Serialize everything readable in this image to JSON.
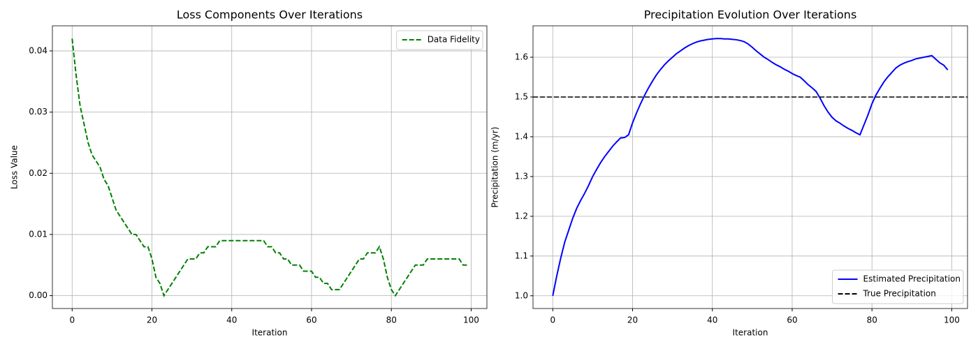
{
  "chart_data": [
    {
      "type": "line",
      "title": "Loss Components Over Iterations",
      "xlabel": "Iteration",
      "ylabel": "Loss Value",
      "x": [
        0,
        1,
        2,
        3,
        4,
        5,
        6,
        7,
        8,
        9,
        10,
        11,
        12,
        13,
        14,
        15,
        16,
        17,
        18,
        19,
        20,
        21,
        22,
        23,
        24,
        25,
        26,
        27,
        28,
        29,
        30,
        31,
        32,
        33,
        34,
        35,
        36,
        37,
        38,
        39,
        40,
        41,
        42,
        43,
        44,
        45,
        46,
        47,
        48,
        49,
        50,
        51,
        52,
        53,
        54,
        55,
        56,
        57,
        58,
        59,
        60,
        61,
        62,
        63,
        64,
        65,
        66,
        67,
        68,
        69,
        70,
        71,
        72,
        73,
        74,
        75,
        76,
        77,
        78,
        79,
        80,
        81,
        82,
        83,
        84,
        85,
        86,
        87,
        88,
        89,
        90,
        91,
        92,
        93,
        94,
        95,
        96,
        97,
        98,
        99
      ],
      "series": [
        {
          "name": "Data Fidelity",
          "color": "#008000",
          "linestyle": "dashed",
          "values": [
            0.042,
            0.036,
            0.031,
            0.028,
            0.025,
            0.023,
            0.022,
            0.021,
            0.019,
            0.018,
            0.016,
            0.014,
            0.013,
            0.012,
            0.011,
            0.01,
            0.01,
            0.009,
            0.008,
            0.008,
            0.006,
            0.003,
            0.002,
            0.0,
            0.001,
            0.002,
            0.003,
            0.004,
            0.005,
            0.006,
            0.006,
            0.006,
            0.007,
            0.007,
            0.008,
            0.008,
            0.008,
            0.009,
            0.009,
            0.009,
            0.009,
            0.009,
            0.009,
            0.009,
            0.009,
            0.009,
            0.009,
            0.009,
            0.009,
            0.008,
            0.008,
            0.007,
            0.007,
            0.006,
            0.006,
            0.005,
            0.005,
            0.005,
            0.004,
            0.004,
            0.004,
            0.003,
            0.003,
            0.002,
            0.002,
            0.001,
            0.001,
            0.001,
            0.002,
            0.003,
            0.004,
            0.005,
            0.006,
            0.006,
            0.007,
            0.007,
            0.007,
            0.008,
            0.006,
            0.003,
            0.001,
            0.0,
            0.001,
            0.002,
            0.003,
            0.004,
            0.005,
            0.005,
            0.005,
            0.006,
            0.006,
            0.006,
            0.006,
            0.006,
            0.006,
            0.006,
            0.006,
            0.006,
            0.005,
            0.005
          ]
        }
      ],
      "xlim": [
        -4.95,
        103.95
      ],
      "xticks": [
        0,
        20,
        40,
        60,
        80,
        100
      ],
      "ylim": [
        -0.0021,
        0.0441
      ],
      "yticks": [
        {
          "value": 0,
          "label": "0.00"
        },
        0.01,
        0.02,
        0.03,
        0.04
      ],
      "grid": true,
      "legend": "upper right"
    },
    {
      "type": "line",
      "title": "Precipitation Evolution Over Iterations",
      "xlabel": "Iteration",
      "ylabel": "Precipitation (m/yr)",
      "x": [
        0,
        1,
        2,
        3,
        4,
        5,
        6,
        7,
        8,
        9,
        10,
        11,
        12,
        13,
        14,
        15,
        16,
        17,
        18,
        19,
        20,
        21,
        22,
        23,
        24,
        25,
        26,
        27,
        28,
        29,
        30,
        31,
        32,
        33,
        34,
        35,
        36,
        37,
        38,
        39,
        40,
        41,
        42,
        43,
        44,
        45,
        46,
        47,
        48,
        49,
        50,
        51,
        52,
        53,
        54,
        55,
        56,
        57,
        58,
        59,
        60,
        61,
        62,
        63,
        64,
        65,
        66,
        67,
        68,
        69,
        70,
        71,
        72,
        73,
        74,
        75,
        76,
        77,
        78,
        79,
        80,
        81,
        82,
        83,
        84,
        85,
        86,
        87,
        88,
        89,
        90,
        91,
        92,
        93,
        94,
        95,
        96,
        97,
        98,
        99
      ],
      "series": [
        {
          "name": "Estimated Precipitation",
          "color": "#0000ff",
          "linestyle": "solid",
          "values": [
            1.0,
            1.05,
            1.095,
            1.135,
            1.165,
            1.195,
            1.22,
            1.24,
            1.258,
            1.278,
            1.3,
            1.318,
            1.335,
            1.35,
            1.363,
            1.376,
            1.387,
            1.397,
            1.398,
            1.405,
            1.435,
            1.46,
            1.483,
            1.504,
            1.523,
            1.54,
            1.556,
            1.569,
            1.581,
            1.591,
            1.6,
            1.609,
            1.616,
            1.623,
            1.629,
            1.634,
            1.638,
            1.641,
            1.643,
            1.645,
            1.646,
            1.647,
            1.647,
            1.646,
            1.646,
            1.645,
            1.644,
            1.642,
            1.639,
            1.633,
            1.625,
            1.616,
            1.608,
            1.6,
            1.594,
            1.587,
            1.581,
            1.576,
            1.57,
            1.565,
            1.559,
            1.554,
            1.55,
            1.541,
            1.531,
            1.523,
            1.514,
            1.497,
            1.478,
            1.462,
            1.449,
            1.44,
            1.434,
            1.427,
            1.421,
            1.416,
            1.41,
            1.405,
            1.43,
            1.455,
            1.483,
            1.505,
            1.522,
            1.538,
            1.551,
            1.562,
            1.573,
            1.58,
            1.585,
            1.589,
            1.592,
            1.596,
            1.598,
            1.6,
            1.602,
            1.604,
            1.595,
            1.586,
            1.58,
            1.568
          ]
        }
      ],
      "hlines": [
        {
          "name": "True Precipitation",
          "color": "#000000",
          "linestyle": "dashed",
          "value": 1.5
        }
      ],
      "xlim": [
        -4.95,
        103.95
      ],
      "xticks": [
        0,
        20,
        40,
        60,
        80,
        100
      ],
      "ylim": [
        0.968,
        1.679
      ],
      "yticks": [
        {
          "value": 1,
          "label": "1.0"
        },
        1.1,
        1.2,
        1.3,
        1.4,
        1.5,
        1.6
      ],
      "grid": true,
      "legend": "lower right"
    }
  ]
}
